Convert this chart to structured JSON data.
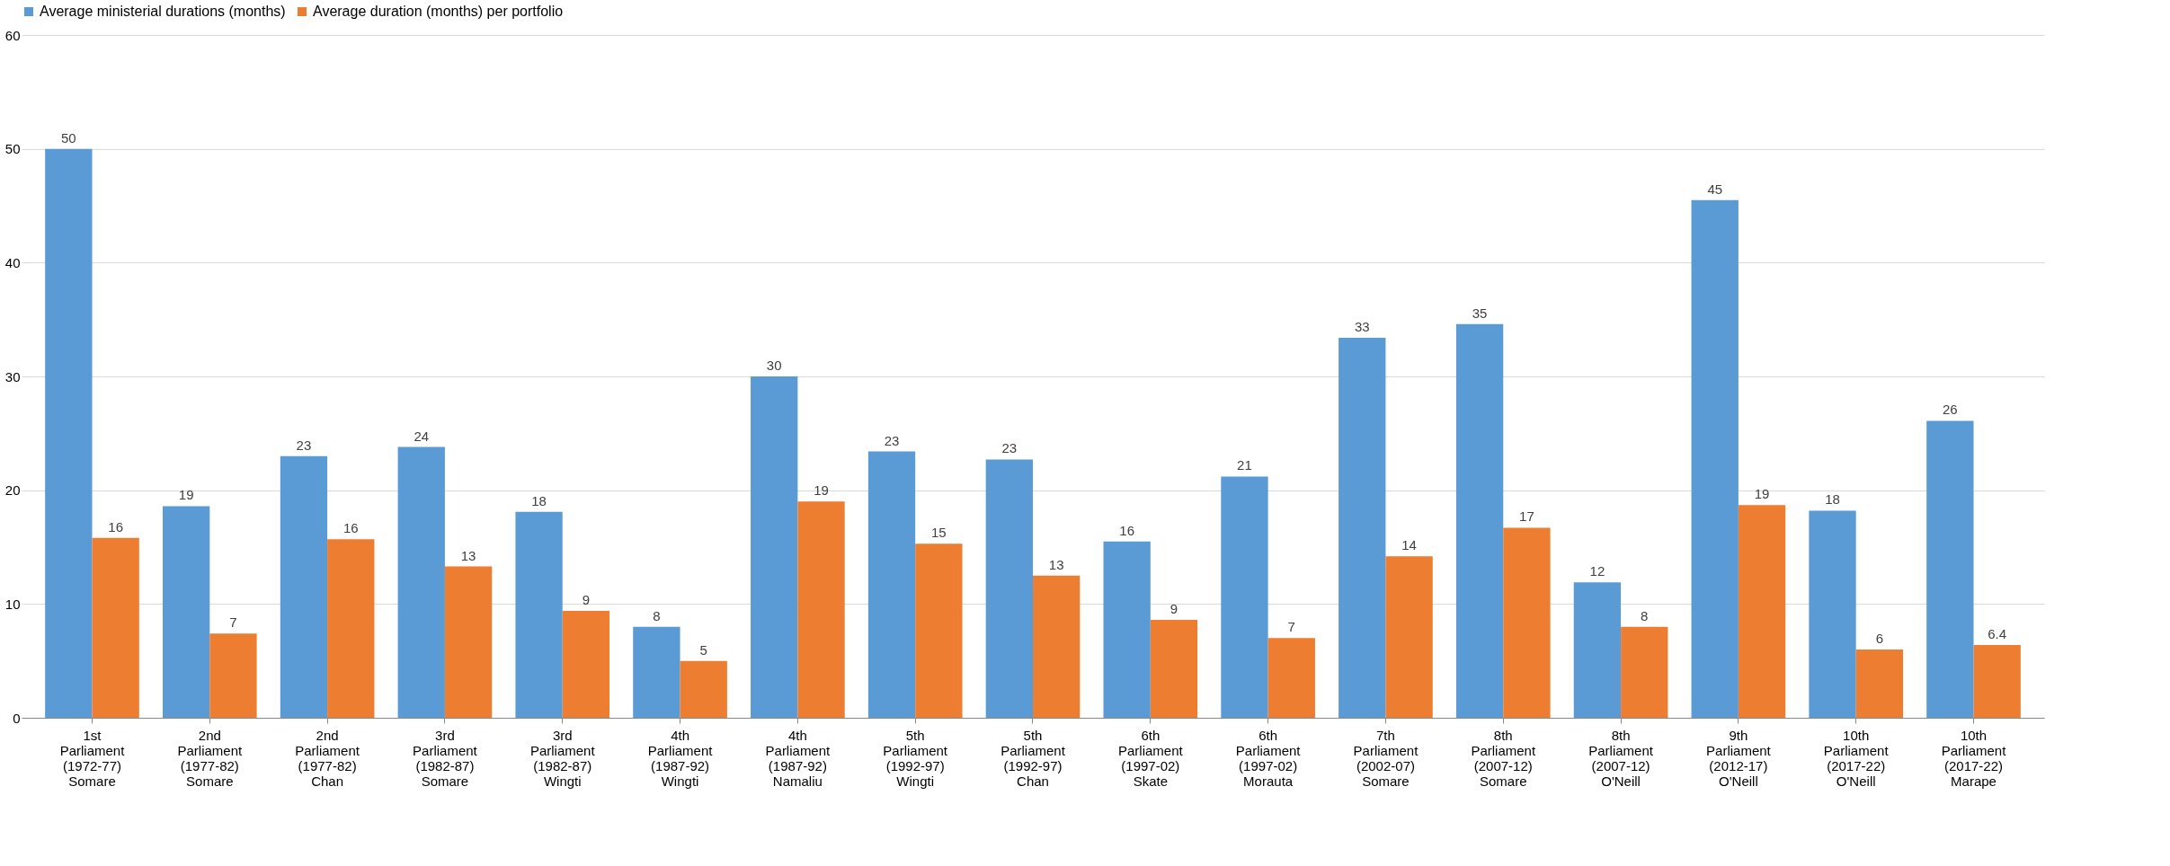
{
  "chart_data": {
    "type": "bar",
    "categories": [
      "1st Parliament (1972-77) Somare",
      "2nd Parliament (1977-82) Somare",
      "2nd Parliament (1977-82) Chan",
      "3rd Parliament (1982-87) Somare",
      "3rd Parliament (1982-87) Wingti",
      "4th Parliament (1987-92) Wingti",
      "4th Parliament (1987-92) Namaliu",
      "5th Parliament (1992-97) Wingti",
      "5th Parliament (1992-97) Chan",
      "6th Parliament (1997-02) Skate",
      "6th Parliament (1997-02) Morauta",
      "7th Parliament (2002-07) Somare",
      "8th Parliament (2007-12) Somare",
      "8th Parliament (2007-12) O'Neill",
      "9th Parliament (2012-17) O'Neill",
      "10th Parliament (2017-22) O'Neill",
      "10th Parliament (2017-22) Marape"
    ],
    "series": [
      {
        "name": "Average ministerial durations (months)",
        "color": "#5b9bd5",
        "values": [
          50,
          18.6,
          23,
          23.8,
          18.1,
          8,
          30,
          23.4,
          22.7,
          15.5,
          21.2,
          33.4,
          34.6,
          11.9,
          45.5,
          18.2,
          26.1
        ],
        "value_labels": [
          "50",
          "19",
          "23",
          "24",
          "18",
          "8",
          "30",
          "23",
          "23",
          "16",
          "21",
          "33",
          "35",
          "12",
          "45",
          "18",
          "26"
        ]
      },
      {
        "name": "Average duration (months) per portfolio",
        "color": "#ed7d31",
        "values": [
          15.8,
          7.4,
          15.7,
          13.3,
          9.4,
          5,
          19,
          15.3,
          12.5,
          8.6,
          7,
          14.2,
          16.7,
          8,
          18.7,
          6,
          6.4
        ],
        "value_labels": [
          "16",
          "7",
          "16",
          "13",
          "9",
          "5",
          "19",
          "15",
          "13",
          "9",
          "7",
          "14",
          "17",
          "8",
          "19",
          "6",
          "6.4"
        ]
      }
    ],
    "ylim": [
      0,
      60
    ],
    "yticks": [
      0,
      10,
      20,
      30,
      40,
      50,
      60
    ],
    "grid": "y",
    "legend": "top"
  }
}
